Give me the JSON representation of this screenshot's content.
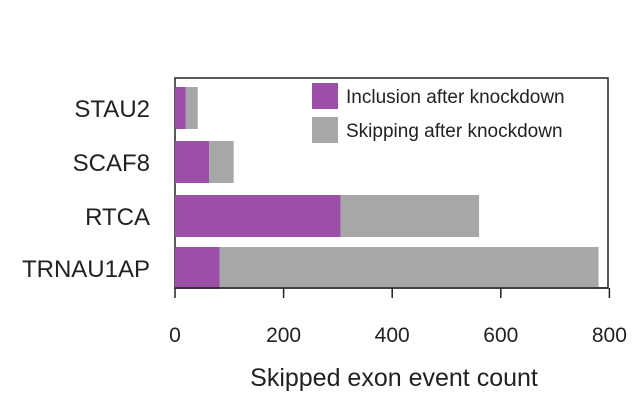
{
  "chart_data": {
    "type": "bar",
    "orientation": "horizontal",
    "stacked": true,
    "categories": [
      "STAU2",
      "SCAF8",
      "RTCA",
      "TRNAU1AP"
    ],
    "series": [
      {
        "name": "Inclusion after knockdown",
        "color": "#9b4fa6",
        "values": [
          20,
          63,
          305,
          82
        ]
      },
      {
        "name": "Skipping after knockdown",
        "color": "#a6a7a9",
        "values": [
          22,
          45,
          255,
          698
        ]
      }
    ],
    "xlabel": "Skipped exon event count",
    "ylabel": "",
    "xlim": [
      0,
      800
    ],
    "xticks": [
      "0",
      "200",
      "400",
      "600",
      "800"
    ],
    "grid": false,
    "legend_position": "top-right"
  }
}
